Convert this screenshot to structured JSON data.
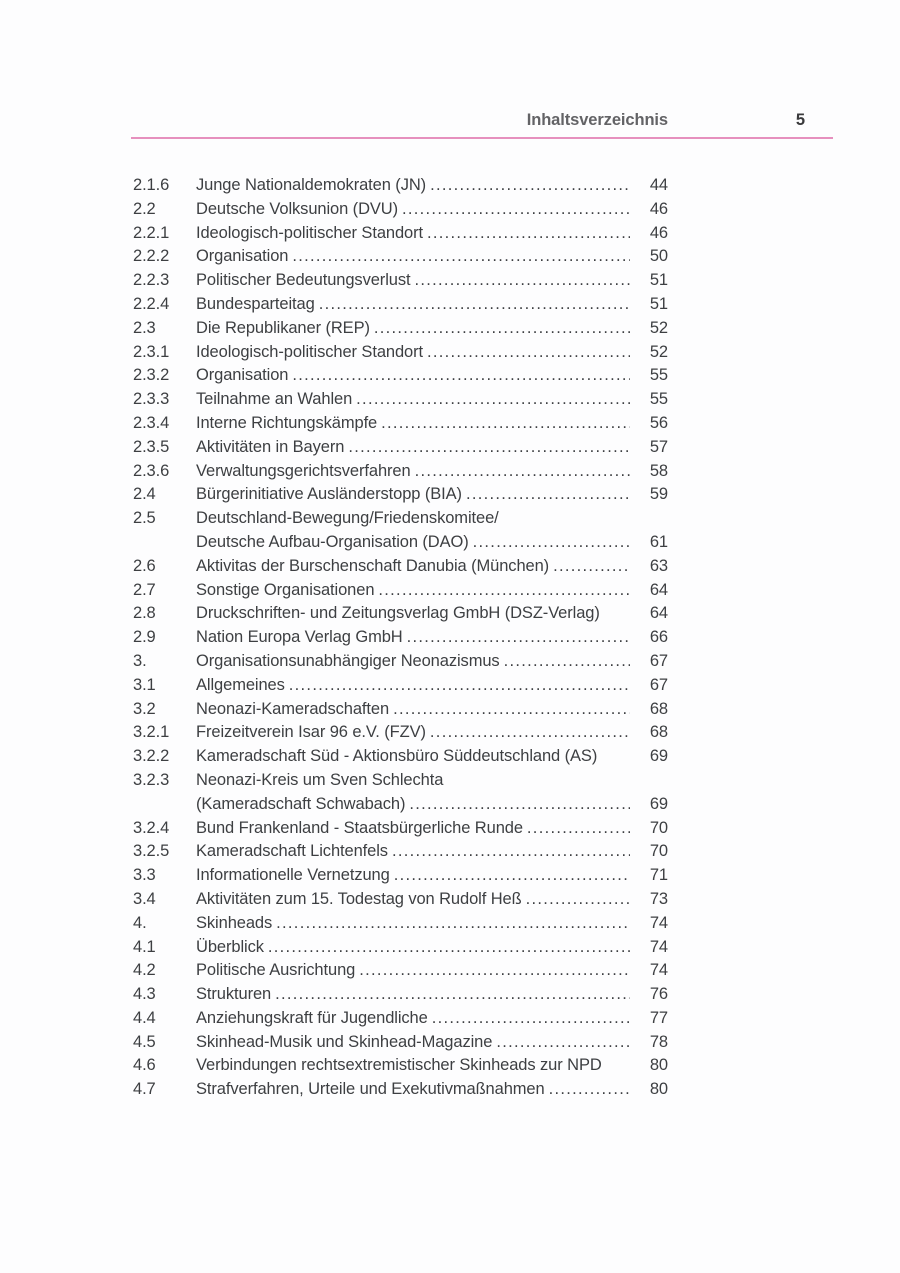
{
  "header": {
    "title": "Inhaltsverzeichnis",
    "page_number": "5"
  },
  "colors": {
    "rule_pink": "#e690be",
    "body_text": "#3d3f42",
    "header_text": "#636366"
  },
  "toc": {
    "entries": [
      {
        "num": "2.1.6",
        "lines": [
          "Junge Nationaldemokraten (JN)"
        ],
        "page": "44",
        "leader": true
      },
      {
        "num": "2.2",
        "lines": [
          "Deutsche Volksunion (DVU)"
        ],
        "page": "46",
        "leader": true
      },
      {
        "num": "2.2.1",
        "lines": [
          "Ideologisch-politischer Standort"
        ],
        "page": "46",
        "leader": true
      },
      {
        "num": "2.2.2",
        "lines": [
          "Organisation"
        ],
        "page": "50",
        "leader": true
      },
      {
        "num": "2.2.3",
        "lines": [
          "Politischer Bedeutungsverlust"
        ],
        "page": "51",
        "leader": true
      },
      {
        "num": "2.2.4",
        "lines": [
          "Bundesparteitag"
        ],
        "page": "51",
        "leader": true
      },
      {
        "num": "2.3",
        "lines": [
          "Die Republikaner (REP)"
        ],
        "page": "52",
        "leader": true
      },
      {
        "num": "2.3.1",
        "lines": [
          "Ideologisch-politischer Standort"
        ],
        "page": "52",
        "leader": true
      },
      {
        "num": "2.3.2",
        "lines": [
          "Organisation"
        ],
        "page": "55",
        "leader": true
      },
      {
        "num": "2.3.3",
        "lines": [
          "Teilnahme an Wahlen"
        ],
        "page": "55",
        "leader": true
      },
      {
        "num": "2.3.4",
        "lines": [
          "Interne Richtungskämpfe"
        ],
        "page": "56",
        "leader": true
      },
      {
        "num": "2.3.5",
        "lines": [
          "Aktivitäten in Bayern"
        ],
        "page": "57",
        "leader": true
      },
      {
        "num": "2.3.6",
        "lines": [
          "Verwaltungsgerichtsverfahren"
        ],
        "page": "58",
        "leader": true
      },
      {
        "num": "2.4",
        "lines": [
          "Bürgerinitiative Ausländerstopp (BIA)"
        ],
        "page": "59",
        "leader": true
      },
      {
        "num": "2.5",
        "lines": [
          "Deutschland-Bewegung/Friedenskomitee/",
          "Deutsche Aufbau-Organisation (DAO)"
        ],
        "page": "61",
        "leader": true
      },
      {
        "num": "2.6",
        "lines": [
          "Aktivitas der Burschenschaft Danubia (München)"
        ],
        "page": "63",
        "leader": true
      },
      {
        "num": "2.7",
        "lines": [
          "Sonstige Organisationen"
        ],
        "page": "64",
        "leader": true
      },
      {
        "num": "2.8",
        "lines": [
          "Druckschriften- und Zeitungsverlag GmbH (DSZ-Verlag)"
        ],
        "page": "64",
        "leader": false
      },
      {
        "num": "2.9",
        "lines": [
          "Nation Europa Verlag GmbH"
        ],
        "page": "66",
        "leader": true
      },
      {
        "num": "3.",
        "lines": [
          "Organisationsunabhängiger Neonazismus"
        ],
        "page": "67",
        "leader": true
      },
      {
        "num": "3.1",
        "lines": [
          "Allgemeines"
        ],
        "page": "67",
        "leader": true
      },
      {
        "num": "3.2",
        "lines": [
          "Neonazi-Kameradschaften"
        ],
        "page": "68",
        "leader": true
      },
      {
        "num": "3.2.1",
        "lines": [
          "Freizeitverein Isar 96 e.V. (FZV)"
        ],
        "page": "68",
        "leader": true
      },
      {
        "num": "3.2.2",
        "lines": [
          "Kameradschaft Süd - Aktionsbüro Süddeutschland (AS)"
        ],
        "page": "69",
        "leader": false
      },
      {
        "num": "3.2.3",
        "lines": [
          "Neonazi-Kreis um Sven Schlechta",
          "(Kameradschaft Schwabach)"
        ],
        "page": "69",
        "leader": true
      },
      {
        "num": "3.2.4",
        "lines": [
          "Bund Frankenland - Staatsbürgerliche Runde"
        ],
        "page": "70",
        "leader": true
      },
      {
        "num": "3.2.5",
        "lines": [
          "Kameradschaft Lichtenfels"
        ],
        "page": "70",
        "leader": true
      },
      {
        "num": "3.3",
        "lines": [
          "Informationelle Vernetzung"
        ],
        "page": "71",
        "leader": true
      },
      {
        "num": "3.4",
        "lines": [
          "Aktivitäten zum 15. Todestag von Rudolf Heß"
        ],
        "page": "73",
        "leader": true
      },
      {
        "num": "4.",
        "lines": [
          "Skinheads"
        ],
        "page": "74",
        "leader": true
      },
      {
        "num": "4.1",
        "lines": [
          "Überblick"
        ],
        "page": "74",
        "leader": true
      },
      {
        "num": "4.2",
        "lines": [
          "Politische Ausrichtung"
        ],
        "page": "74",
        "leader": true
      },
      {
        "num": "4.3",
        "lines": [
          "Strukturen"
        ],
        "page": "76",
        "leader": true
      },
      {
        "num": "4.4",
        "lines": [
          "Anziehungskraft für Jugendliche"
        ],
        "page": "77",
        "leader": true
      },
      {
        "num": "4.5",
        "lines": [
          "Skinhead-Musik und Skinhead-Magazine"
        ],
        "page": "78",
        "leader": true
      },
      {
        "num": "4.6",
        "lines": [
          "Verbindungen rechtsextremistischer Skinheads zur NPD"
        ],
        "page": "80",
        "leader": false
      },
      {
        "num": "4.7",
        "lines": [
          "Strafverfahren, Urteile und Exekutivmaßnahmen"
        ],
        "page": "80",
        "leader": true
      }
    ]
  }
}
